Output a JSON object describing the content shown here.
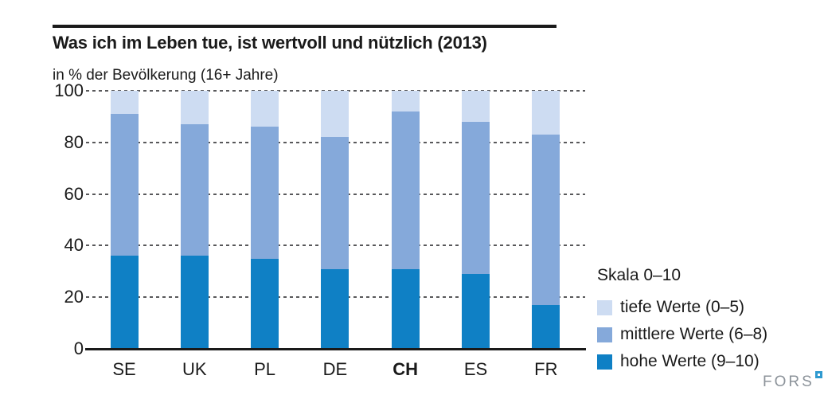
{
  "header": {
    "title": "Was ich im Leben tue, ist wertvoll und nützlich (2013)",
    "subtitle": "in % der Bevölkerung (16+ Jahre)"
  },
  "chart_data": {
    "type": "bar",
    "stacked": true,
    "title": "Was ich im Leben tue, ist wertvoll und nützlich (2013)",
    "subtitle": "in % der Bevölkerung (16+ Jahre)",
    "categories": [
      "SE",
      "UK",
      "PL",
      "DE",
      "CH",
      "ES",
      "FR"
    ],
    "emphasized_category": "CH",
    "series": [
      {
        "name": "hohe Werte (9–10)",
        "color": "#0f80c5",
        "values": [
          36,
          36,
          35,
          31,
          31,
          29,
          17
        ]
      },
      {
        "name": "mittlere Werte (6–8)",
        "color": "#85a9da",
        "values": [
          55,
          51,
          51,
          51,
          61,
          59,
          66
        ]
      },
      {
        "name": "tiefe Werte (0–5)",
        "color": "#cddcf2",
        "values": [
          9,
          13,
          14,
          18,
          8,
          12,
          17
        ]
      }
    ],
    "cumulative_tops": {
      "hohe": [
        36,
        36,
        35,
        31,
        31,
        29,
        17
      ],
      "mittlere": [
        91,
        87,
        86,
        82,
        92,
        88,
        83
      ],
      "tiefe": [
        100,
        100,
        100,
        100,
        100,
        100,
        100
      ]
    },
    "xlabel": "",
    "ylabel": "in % der Bevölkerung (16+ Jahre)",
    "ylim": [
      0,
      100
    ],
    "yticks": [
      0,
      20,
      40,
      60,
      80,
      100
    ],
    "grid": "horizontal-dashed",
    "legend_title": "Skala 0–10",
    "legend_position": "right-bottom"
  },
  "legend": {
    "title": "Skala 0–10",
    "items": [
      {
        "label": "tiefe Werte (0–5)",
        "color": "#cddcf2"
      },
      {
        "label": "mittlere Werte (6–8)",
        "color": "#85a9da"
      },
      {
        "label": "hohe Werte (9–10)",
        "color": "#0f80c5"
      }
    ]
  },
  "footer": {
    "logo_text": "FORS"
  },
  "colors": {
    "bar_high": "#0f80c5",
    "bar_mid": "#85a9da",
    "bar_low": "#cddcf2",
    "gridline": "#58585a",
    "axis": "#1a1a1a",
    "logo_gray": "#8c939a",
    "logo_blue": "#2f9ad0"
  }
}
